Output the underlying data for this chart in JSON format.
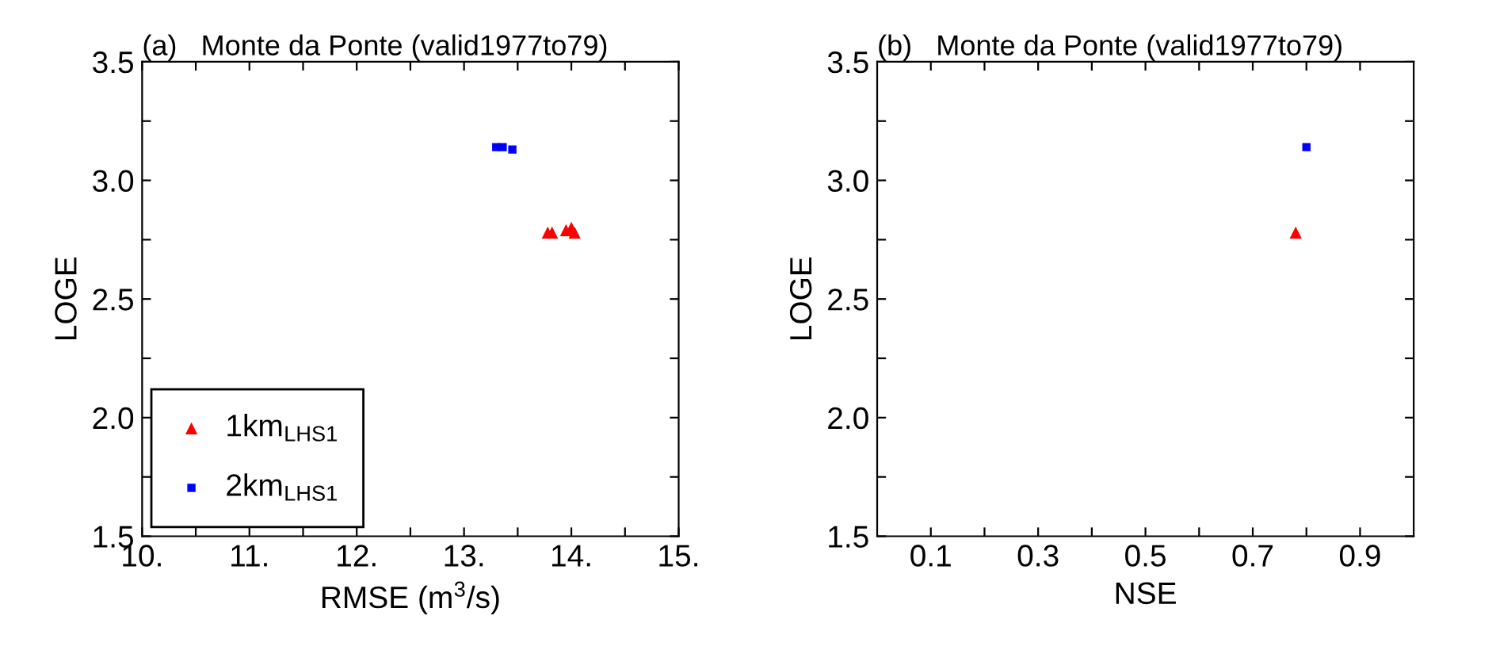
{
  "chart_data": [
    {
      "type": "scatter",
      "title": "(a)   Monte da Ponte (valid1977to79)",
      "xlabel": "RMSE (m$^{3}$/s)",
      "ylabel": "LOGE",
      "xlim": [
        10,
        15
      ],
      "ylim": [
        1.5,
        3.5
      ],
      "xticks": [
        {
          "value": 10,
          "label": "10."
        },
        {
          "value": 10.5,
          "label": null
        },
        {
          "value": 11,
          "label": "11."
        },
        {
          "value": 11.5,
          "label": null
        },
        {
          "value": 12,
          "label": "12."
        },
        {
          "value": 12.5,
          "label": null
        },
        {
          "value": 13,
          "label": "13."
        },
        {
          "value": 13.5,
          "label": null
        },
        {
          "value": 14,
          "label": "14."
        },
        {
          "value": 14.5,
          "label": null
        },
        {
          "value": 15,
          "label": "15."
        }
      ],
      "yticks": [
        {
          "value": 1.5,
          "label": "1.5"
        },
        {
          "value": 1.75,
          "label": null
        },
        {
          "value": 2.0,
          "label": "2.0"
        },
        {
          "value": 2.25,
          "label": null
        },
        {
          "value": 2.5,
          "label": "2.5"
        },
        {
          "value": 2.75,
          "label": null
        },
        {
          "value": 3.0,
          "label": "3.0"
        },
        {
          "value": 3.25,
          "label": null
        },
        {
          "value": 3.5,
          "label": "3.5"
        }
      ],
      "grid": false,
      "legend": "bottom left",
      "series": [
        {
          "name": "1km$_{LHS1}$",
          "color": "#ff0000",
          "marker": "triangle",
          "x": [
            13.78,
            13.82,
            13.95,
            14.0,
            14.03
          ],
          "values": [
            2.78,
            2.78,
            2.79,
            2.8,
            2.78
          ]
        },
        {
          "name": "2km$_{LHS1}$",
          "color": "#0000ff",
          "marker": "square",
          "x": [
            13.3,
            13.36,
            13.45
          ],
          "values": [
            3.14,
            3.14,
            3.13
          ]
        }
      ]
    },
    {
      "type": "scatter",
      "title": "(b)   Monte da Ponte (valid1977to79)",
      "xlabel": "NSE",
      "ylabel": "LOGE",
      "xlim": [
        0,
        1
      ],
      "ylim": [
        1.5,
        3.5
      ],
      "xticks": [
        {
          "value": 0.1,
          "label": "0.1"
        },
        {
          "value": 0.2,
          "label": null
        },
        {
          "value": 0.3,
          "label": "0.3"
        },
        {
          "value": 0.4,
          "label": null
        },
        {
          "value": 0.5,
          "label": "0.5"
        },
        {
          "value": 0.6,
          "label": null
        },
        {
          "value": 0.7,
          "label": "0.7"
        },
        {
          "value": 0.8,
          "label": null
        },
        {
          "value": 0.9,
          "label": "0.9"
        }
      ],
      "yticks": [
        {
          "value": 1.5,
          "label": "1.5"
        },
        {
          "value": 1.75,
          "label": null
        },
        {
          "value": 2.0,
          "label": "2.0"
        },
        {
          "value": 2.25,
          "label": null
        },
        {
          "value": 2.5,
          "label": "2.5"
        },
        {
          "value": 2.75,
          "label": null
        },
        {
          "value": 3.0,
          "label": "3.0"
        },
        {
          "value": 3.25,
          "label": null
        },
        {
          "value": 3.5,
          "label": "3.5"
        }
      ],
      "grid": false,
      "legend": false,
      "series": [
        {
          "color": "#ff0000",
          "marker": "triangle",
          "x": [
            0.78
          ],
          "values": [
            2.78
          ]
        },
        {
          "color": "#0000ff",
          "marker": "square",
          "x": [
            0.8
          ],
          "values": [
            3.14
          ]
        }
      ]
    }
  ]
}
